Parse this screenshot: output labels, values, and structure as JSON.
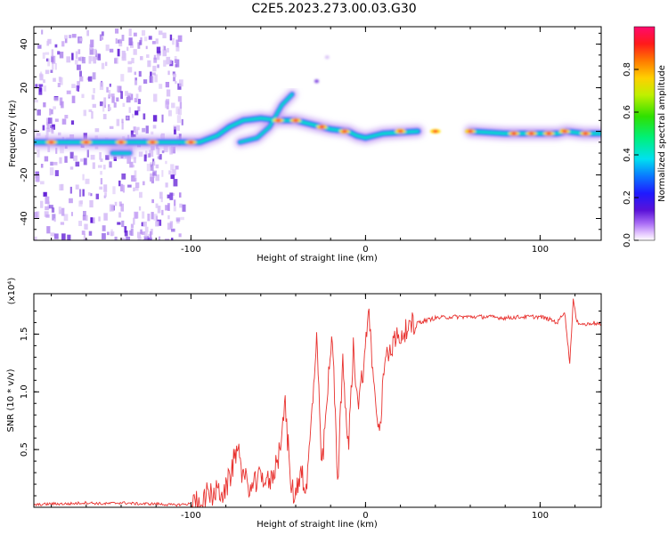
{
  "title": "C2E5.2023.273.00.03.G30",
  "colors": {
    "snr_line": "#e8312e",
    "axis": "#000000",
    "background": "#ffffff"
  },
  "chart_data": [
    {
      "type": "heatmap",
      "xlabel": "Height of straight line (km)",
      "ylabel": "Frequency (Hz)",
      "xlim": [
        -190,
        135
      ],
      "ylim": [
        -50,
        48
      ],
      "xticks": [
        -100,
        0,
        100
      ],
      "yticks": [
        -40,
        -20,
        0,
        20,
        40
      ],
      "colorbar": {
        "label": "Normalized spectral amplitude",
        "ticks": [
          "0.0",
          "0.2",
          "0.4",
          "0.6",
          "0.8"
        ],
        "range": [
          0,
          1
        ]
      },
      "ridge": [
        {
          "x": -190,
          "y": -5
        },
        {
          "x": -170,
          "y": -5
        },
        {
          "x": -150,
          "y": -5
        },
        {
          "x": -130,
          "y": -5
        },
        {
          "x": -110,
          "y": -5
        },
        {
          "x": -95,
          "y": -5
        },
        {
          "x": -85,
          "y": -2
        },
        {
          "x": -78,
          "y": 2
        },
        {
          "x": -70,
          "y": 5
        },
        {
          "x": -60,
          "y": 6
        },
        {
          "x": -50,
          "y": 5
        },
        {
          "x": -40,
          "y": 5
        },
        {
          "x": -30,
          "y": 3
        },
        {
          "x": -20,
          "y": 1
        },
        {
          "x": -10,
          "y": 0
        },
        {
          "x": -5,
          "y": -2
        },
        {
          "x": 0,
          "y": -3
        },
        {
          "x": 10,
          "y": -1
        },
        {
          "x": 30,
          "y": 0
        },
        {
          "x": 60,
          "y": 0
        },
        {
          "x": 80,
          "y": -1
        },
        {
          "x": 100,
          "y": -1
        },
        {
          "x": 110,
          "y": -1
        },
        {
          "x": 115,
          "y": 0
        },
        {
          "x": 125,
          "y": -1
        },
        {
          "x": 135,
          "y": -1
        }
      ],
      "secondary_ridge": [
        {
          "x": -145,
          "y": -10
        },
        {
          "x": -135,
          "y": -10
        },
        {
          "x": -72,
          "y": -5
        },
        {
          "x": -62,
          "y": -3
        },
        {
          "x": -55,
          "y": 2
        },
        {
          "x": -48,
          "y": 12
        },
        {
          "x": -42,
          "y": 17
        }
      ]
    },
    {
      "type": "line",
      "xlabel": "Height of straight line (km)",
      "ylabel": "SNR (10 * v/v)",
      "y_multiplier": "(x10⁴)",
      "xlim": [
        -190,
        135
      ],
      "ylim": [
        0,
        1.85
      ],
      "xticks": [
        -100,
        0,
        100
      ],
      "yticks": [
        0.5,
        1.0,
        1.5
      ],
      "series": [
        {
          "x": [
            -190,
            -180,
            -170,
            -160,
            -150,
            -140,
            -130,
            -120,
            -110,
            -100,
            -95,
            -90,
            -85,
            -80,
            -76,
            -73,
            -70,
            -65,
            -60,
            -55,
            -50,
            -46,
            -43,
            -40,
            -37,
            -34,
            -31,
            -28,
            -25,
            -22,
            -19,
            -16,
            -13,
            -10,
            -7,
            -4,
            -1,
            2,
            5,
            8,
            11,
            14,
            18,
            24,
            30,
            40,
            50,
            60,
            70,
            80,
            90,
            100,
            105,
            110,
            114,
            117,
            119,
            121,
            123,
            126,
            130,
            135
          ],
          "y": [
            0.02,
            0.03,
            0.03,
            0.04,
            0.03,
            0.04,
            0.03,
            0.03,
            0.02,
            0.03,
            0.05,
            0.1,
            0.13,
            0.15,
            0.35,
            0.55,
            0.25,
            0.15,
            0.28,
            0.2,
            0.45,
            0.9,
            0.2,
            0.1,
            0.35,
            0.12,
            0.75,
            1.45,
            0.3,
            0.95,
            1.5,
            0.25,
            1.25,
            0.5,
            1.35,
            0.9,
            1.25,
            1.7,
            1.0,
            0.6,
            1.3,
            1.4,
            1.45,
            1.55,
            1.6,
            1.64,
            1.65,
            1.65,
            1.65,
            1.64,
            1.65,
            1.65,
            1.63,
            1.6,
            1.7,
            1.25,
            1.8,
            1.6,
            1.6,
            1.58,
            1.6,
            1.58
          ]
        }
      ]
    }
  ]
}
